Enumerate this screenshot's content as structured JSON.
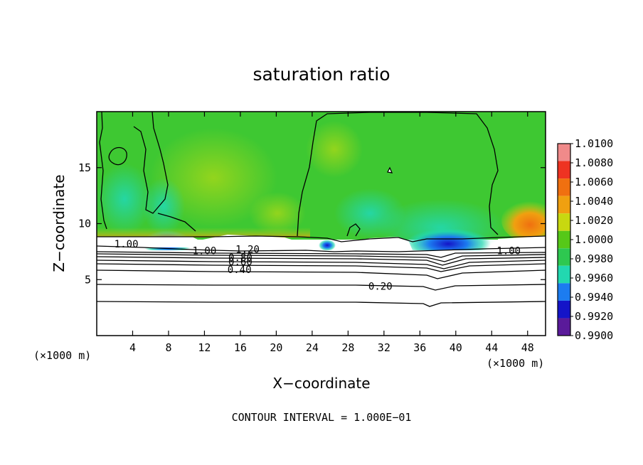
{
  "chart_data": {
    "type": "heatmap",
    "title": "saturation ratio",
    "xlabel": "X−coordinate",
    "ylabel": "Z−coordinate",
    "x_unit": "(×1000 m)",
    "x_unit_right": "(×1000 m)",
    "xlim": [
      0,
      50
    ],
    "ylim": [
      0,
      20
    ],
    "x_ticks": [
      {
        "value": 4,
        "label": "4"
      },
      {
        "value": 8,
        "label": "8"
      },
      {
        "value": 12,
        "label": "12"
      },
      {
        "value": 16,
        "label": "16"
      },
      {
        "value": 20,
        "label": "20"
      },
      {
        "value": 24,
        "label": "24"
      },
      {
        "value": 28,
        "label": "28"
      },
      {
        "value": 32,
        "label": "32"
      },
      {
        "value": 36,
        "label": "36"
      },
      {
        "value": 40,
        "label": "40"
      },
      {
        "value": 44,
        "label": "44"
      },
      {
        "value": 48,
        "label": "48"
      }
    ],
    "y_ticks": [
      {
        "value": 5,
        "label": "5"
      },
      {
        "value": 10,
        "label": "10"
      },
      {
        "value": 15,
        "label": "15"
      }
    ],
    "colorbar": {
      "levels": [
        "1.0100",
        "1.0080",
        "1.0060",
        "1.0040",
        "1.0020",
        "1.0000",
        "0.9980",
        "0.9960",
        "0.9940",
        "0.9920",
        "0.9900"
      ],
      "colors": [
        "#f08a8a",
        "#ee3322",
        "#f07010",
        "#f0a010",
        "#c8d810",
        "#56c818",
        "#2ec850",
        "#22d8b0",
        "#1c7cf0",
        "#1414c8",
        "#5a1a9a"
      ]
    },
    "contour_labels": [
      {
        "text": "1.00",
        "x": 3.3,
        "z": 8.2
      },
      {
        "text": "1.00",
        "x": 12.0,
        "z": 7.6
      },
      {
        "text": "1.20",
        "x": 16.8,
        "z": 7.7
      },
      {
        "text": "0.80",
        "x": 16.0,
        "z": 7.0
      },
      {
        "text": "0.60",
        "x": 16.0,
        "z": 6.6
      },
      {
        "text": "0.40",
        "x": 15.9,
        "z": 5.9
      },
      {
        "text": "0.20",
        "x": 31.6,
        "z": 4.4
      },
      {
        "text": "1.00",
        "x": 45.9,
        "z": 7.6
      }
    ],
    "footer": "CONTOUR INTERVAL = 1.000E−01"
  }
}
